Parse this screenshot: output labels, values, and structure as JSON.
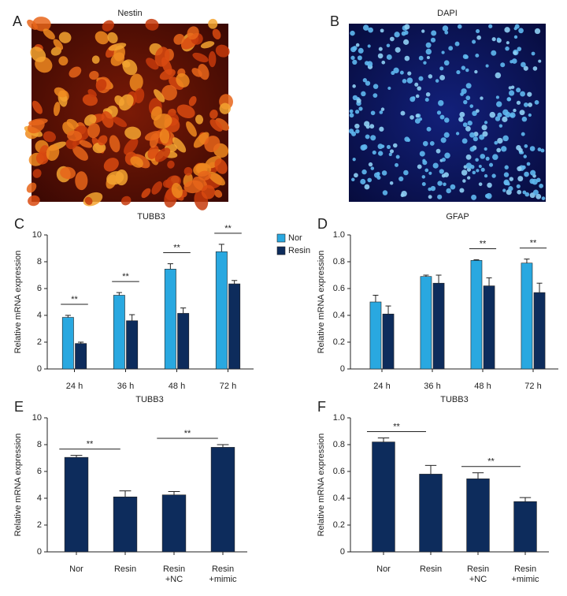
{
  "images": [
    {
      "label": "A",
      "title": "Nestin"
    },
    {
      "label": "B",
      "title": "DAPI"
    }
  ],
  "chart_data": [
    {
      "type": "bar",
      "label": "C",
      "title": "TUBB3",
      "ylabel": "Relative mRNA expression",
      "categories": [
        "24 h",
        "36 h",
        "48 h",
        "72 h"
      ],
      "series": [
        {
          "name": "Nor",
          "color": "#29a8e0",
          "values": [
            3.85,
            5.5,
            7.45,
            8.75
          ],
          "errors": [
            0.15,
            0.2,
            0.4,
            0.55
          ]
        },
        {
          "name": "Resin",
          "color": "#0d2c5c",
          "values": [
            1.9,
            3.6,
            4.15,
            6.35
          ],
          "errors": [
            0.1,
            0.45,
            0.4,
            0.25
          ]
        }
      ],
      "ylim": [
        0,
        10
      ],
      "yticks": [
        0,
        2,
        4,
        6,
        8,
        10
      ],
      "legend": "right",
      "annotations": [
        {
          "text": "**",
          "categories": [
            0
          ]
        },
        {
          "text": "**",
          "categories": [
            1
          ]
        },
        {
          "text": "**",
          "categories": [
            2
          ]
        },
        {
          "text": "**",
          "categories": [
            3
          ]
        }
      ]
    },
    {
      "type": "bar",
      "label": "D",
      "title": "GFAP",
      "ylabel": "Relative mRNA expression",
      "categories": [
        "24 h",
        "36 h",
        "48 h",
        "72 h"
      ],
      "series": [
        {
          "color": "#29a8e0",
          "values": [
            0.5,
            0.69,
            0.81,
            0.79
          ],
          "errors": [
            0.05,
            0.01,
            0.005,
            0.03
          ]
        },
        {
          "color": "#0d2c5c",
          "values": [
            0.41,
            0.64,
            0.62,
            0.57
          ],
          "errors": [
            0.06,
            0.06,
            0.06,
            0.07
          ]
        }
      ],
      "ylim": [
        0,
        1
      ],
      "yticks": [
        0,
        0.2,
        0.4,
        0.6,
        0.8,
        {
          "value": 1,
          "label": "1.0"
        }
      ],
      "annotations": [
        {
          "text": "**",
          "categories": [
            2
          ]
        },
        {
          "text": "**",
          "categories": [
            3
          ]
        }
      ]
    },
    {
      "type": "bar",
      "label": "E",
      "title": "TUBB3",
      "ylabel": "Relative mRNA expression",
      "categories": [
        "Nor",
        "Resin",
        "Resin\n+NC",
        "Resin\n+mimic"
      ],
      "color": "#0d2c5c",
      "values": [
        7.05,
        4.1,
        4.25,
        7.8
      ],
      "errors": [
        0.15,
        0.45,
        0.25,
        0.2
      ],
      "ylim": [
        0,
        10
      ],
      "yticks": [
        0,
        2,
        4,
        6,
        8,
        10
      ],
      "annotations": [
        {
          "text": "**",
          "categories": [
            0,
            1
          ]
        },
        {
          "text": "**",
          "categories": [
            2,
            3
          ]
        }
      ]
    },
    {
      "type": "bar",
      "label": "F",
      "title": "TUBB3",
      "ylabel": "Relative mRNA expression",
      "categories": [
        "Nor",
        "Resin",
        "Resin\n+NC",
        "Resin\n+mimic"
      ],
      "color": "#0d2c5c",
      "values": [
        0.82,
        0.58,
        0.545,
        0.375
      ],
      "errors": [
        0.03,
        0.065,
        0.045,
        0.03
      ],
      "ylim": [
        0,
        1
      ],
      "yticks": [
        0,
        0.2,
        0.4,
        0.6,
        0.8,
        {
          "value": 1,
          "label": "1.0"
        }
      ],
      "annotations": [
        {
          "text": "**",
          "categories": [
            0,
            1
          ]
        },
        {
          "text": "**",
          "categories": [
            2,
            3
          ]
        }
      ]
    }
  ]
}
